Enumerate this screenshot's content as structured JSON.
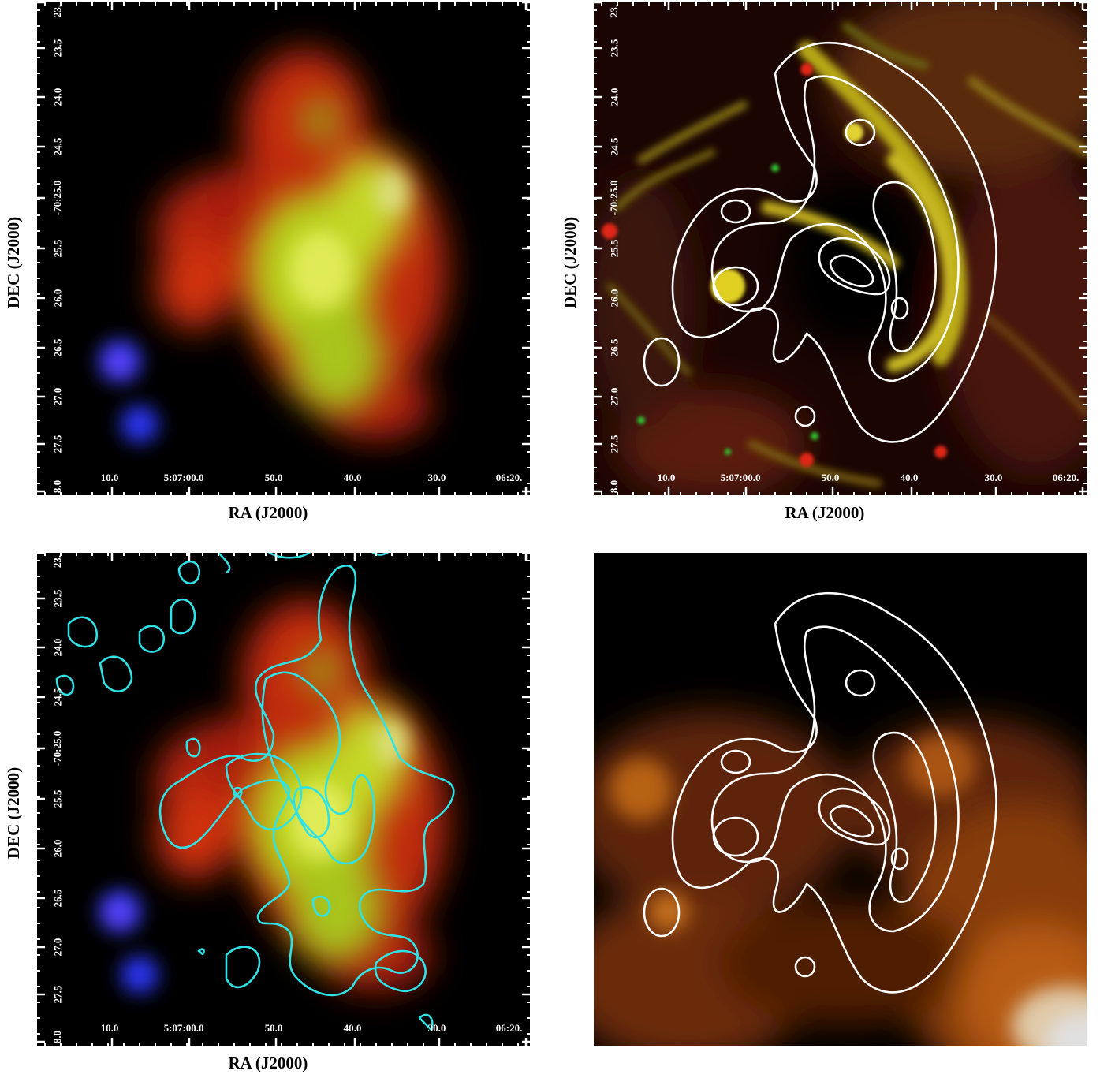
{
  "figure": {
    "panels": [
      {
        "id": "top-left",
        "image": "x-ray-rgb-composite",
        "ra_ticks": [
          "10.0",
          "5:07:00.0",
          "50.0",
          "40.0",
          "30.0",
          "06:20."
        ],
        "dec_ticks": [
          "23.",
          "23.5",
          "24.0",
          "24.5",
          "-70:25.0",
          "25.5",
          "26.0",
          "26.5",
          "27.0",
          "27.5",
          "8.0"
        ],
        "xlabel": "RA (J2000)",
        "ylabel": "DEC (J2000)",
        "contours": "none"
      },
      {
        "id": "top-right",
        "image": "optical-filament-composite",
        "ra_ticks": [
          "10.0",
          "5:07:00.0",
          "50.0",
          "40.0",
          "30.0",
          "06:20."
        ],
        "dec_ticks": [
          "23.",
          "23.5",
          "24.0",
          "24.5",
          "-70:25.0",
          "25.5",
          "26.0",
          "26.5",
          "27.0",
          "27.5",
          "8.0"
        ],
        "xlabel": "RA (J2000)",
        "ylabel": "DEC (J2000)",
        "contours": "white"
      },
      {
        "id": "bottom-left",
        "image": "x-ray-rgb-composite",
        "ra_ticks": [
          "10.0",
          "5:07:00.0",
          "50.0",
          "40.0",
          "30.0",
          "06:20."
        ],
        "dec_ticks": [
          "23.",
          "23.5",
          "24.0",
          "24.5",
          "-70:25.0",
          "25.5",
          "26.0",
          "26.5",
          "27.0",
          "27.5",
          "8.0"
        ],
        "xlabel": "RA (J2000)",
        "ylabel": "DEC (J2000)",
        "contours": "cyan"
      },
      {
        "id": "bottom-right",
        "image": "orange-infrared-map",
        "contours": "white"
      }
    ],
    "colors": {
      "contour_white": "#ffffff",
      "contour_cyan": "#2fe2e6",
      "background": "#000000"
    }
  }
}
